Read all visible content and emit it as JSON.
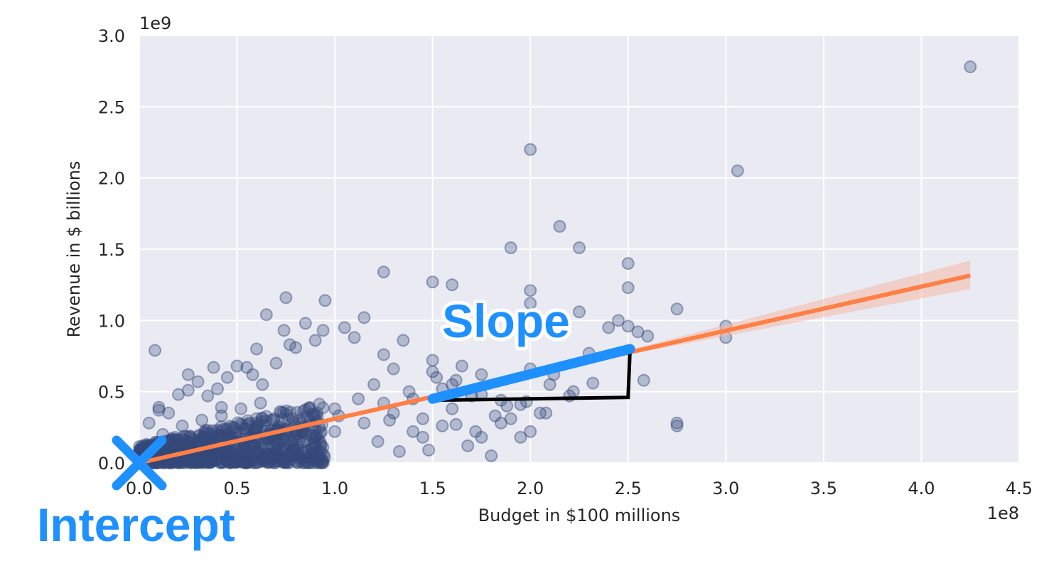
{
  "chart_data": {
    "type": "scatter",
    "title": "",
    "xlabel": "Budget in $100 millions",
    "ylabel": "Revenue in $ billions",
    "x_offset_label": "1e8",
    "y_offset_label": "1e9",
    "xlim": [
      0,
      4.5
    ],
    "ylim": [
      0,
      3.0
    ],
    "x_ticks": [
      0.0,
      0.5,
      1.0,
      1.5,
      2.0,
      2.5,
      3.0,
      3.5,
      4.0,
      4.5
    ],
    "x_tick_labels": [
      "0.0",
      "0.5",
      "1.0",
      "1.5",
      "2.0",
      "2.5",
      "3.0",
      "3.5",
      "4.0",
      "4.5"
    ],
    "y_ticks": [
      0.0,
      0.5,
      1.0,
      1.5,
      2.0,
      2.5,
      3.0
    ],
    "y_tick_labels": [
      "0.0",
      "0.5",
      "1.0",
      "1.5",
      "2.0",
      "2.5",
      "3.0"
    ],
    "grid": true,
    "colors": {
      "background": "#eaeaf2",
      "grid": "#ffffff",
      "points": "#34497a",
      "regression": "#ff7f45",
      "confidence_band": "#f4b8a8",
      "highlight": "#1e90ff",
      "triangle": "#000000"
    },
    "regression_line": {
      "x": [
        0,
        4.25
      ],
      "y": [
        0,
        1.315
      ]
    },
    "confidence_band": {
      "x": [
        0,
        2.5,
        4.25
      ],
      "upper": [
        0.0,
        0.79,
        1.42
      ],
      "lower": [
        0.0,
        0.76,
        1.22
      ]
    },
    "slope_segment": {
      "x": [
        1.5,
        2.51
      ],
      "y": [
        0.45,
        0.8
      ]
    },
    "slope_triangle": {
      "x": [
        1.5,
        2.5,
        2.51
      ],
      "y": [
        0.44,
        0.46,
        0.8
      ]
    },
    "intercept_marker": {
      "x": 0,
      "y": 0
    },
    "annotations": {
      "slope": "Slope",
      "intercept": "Intercept"
    },
    "series": [
      {
        "x": [
          4.25,
          2.0,
          3.06,
          2.15,
          1.9,
          2.25,
          2.5,
          2.5,
          2.5,
          1.25,
          1.5,
          1.6,
          2.0,
          2.0,
          2.75,
          3.0,
          3.0,
          2.75,
          2.75,
          2.6,
          2.58,
          2.3,
          2.25,
          2.2,
          2.1,
          2.05,
          2.0,
          1.95,
          1.9,
          1.85,
          1.8,
          1.75,
          1.7,
          1.65,
          1.6,
          1.55,
          1.5,
          1.45,
          1.4,
          1.35,
          1.3,
          1.25,
          1.2,
          1.15,
          1.1,
          1.05,
          1.0,
          0.95,
          0.94,
          0.9,
          0.85,
          0.8,
          0.75,
          0.7,
          0.65,
          0.6,
          0.55,
          0.5,
          0.45,
          0.4,
          0.35,
          0.3,
          0.25,
          0.2,
          0.15,
          0.1,
          0.05,
          0.08,
          0.74,
          0.77,
          0.63,
          0.58,
          0.42,
          0.38,
          0.25,
          0.1,
          1.75,
          1.62,
          1.48,
          1.33,
          1.22,
          1.4,
          1.55,
          1.82,
          1.95,
          2.08,
          2.22,
          2.32,
          1.68,
          1.52,
          1.28,
          1.15,
          1.02,
          0.92,
          0.82,
          0.72,
          0.62,
          0.52,
          0.42,
          0.32,
          0.22,
          0.12,
          0.02,
          1.0,
          0.9,
          0.8,
          0.7,
          0.6,
          0.5,
          0.4,
          0.3,
          0.2,
          0.1,
          1.12,
          1.25,
          1.38,
          1.5,
          1.62,
          1.75,
          1.88,
          2.0,
          0.88,
          0.76,
          0.66,
          0.54,
          0.44,
          0.34,
          0.24,
          0.14,
          0.04,
          1.3,
          1.45,
          1.6,
          1.72,
          1.85,
          1.98,
          2.12,
          2.4,
          2.45,
          2.55,
          0.85,
          0.78,
          0.68,
          0.56,
          0.46,
          0.36,
          0.26,
          0.16,
          0.06
        ],
        "y": [
          2.78,
          2.2,
          2.05,
          1.66,
          1.51,
          1.51,
          1.4,
          1.23,
          0.96,
          1.34,
          1.27,
          1.25,
          1.21,
          1.12,
          1.08,
          0.96,
          0.88,
          0.28,
          0.26,
          0.89,
          0.58,
          0.77,
          1.06,
          0.47,
          0.55,
          0.35,
          0.22,
          0.18,
          0.31,
          0.44,
          0.05,
          0.62,
          0.47,
          0.68,
          0.38,
          0.52,
          0.72,
          0.31,
          0.45,
          0.86,
          0.66,
          0.76,
          0.55,
          1.02,
          0.88,
          0.95,
          0.38,
          1.14,
          0.93,
          0.86,
          0.98,
          0.81,
          1.16,
          0.7,
          1.04,
          0.8,
          0.67,
          0.68,
          0.6,
          0.52,
          0.47,
          0.57,
          0.62,
          0.48,
          0.35,
          0.37,
          0.28,
          0.79,
          0.93,
          0.83,
          0.55,
          0.62,
          0.39,
          0.67,
          0.51,
          0.39,
          0.18,
          0.27,
          0.09,
          0.08,
          0.15,
          0.22,
          0.26,
          0.33,
          0.41,
          0.35,
          0.5,
          0.56,
          0.12,
          0.6,
          0.3,
          0.28,
          0.33,
          0.25,
          0.3,
          0.36,
          0.42,
          0.38,
          0.33,
          0.3,
          0.26,
          0.2,
          0.12,
          0.22,
          0.18,
          0.2,
          0.16,
          0.24,
          0.21,
          0.19,
          0.15,
          0.12,
          0.1,
          0.45,
          0.42,
          0.5,
          0.64,
          0.58,
          0.48,
          0.4,
          0.66,
          0.1,
          0.12,
          0.14,
          0.11,
          0.09,
          0.13,
          0.08,
          0.06,
          0.04,
          0.35,
          0.18,
          0.55,
          0.22,
          0.28,
          0.43,
          0.62,
          0.95,
          1.0,
          0.92,
          0.05,
          0.08,
          0.06,
          0.1,
          0.07,
          0.05,
          0.09,
          0.07,
          0.05
        ]
      }
    ]
  }
}
